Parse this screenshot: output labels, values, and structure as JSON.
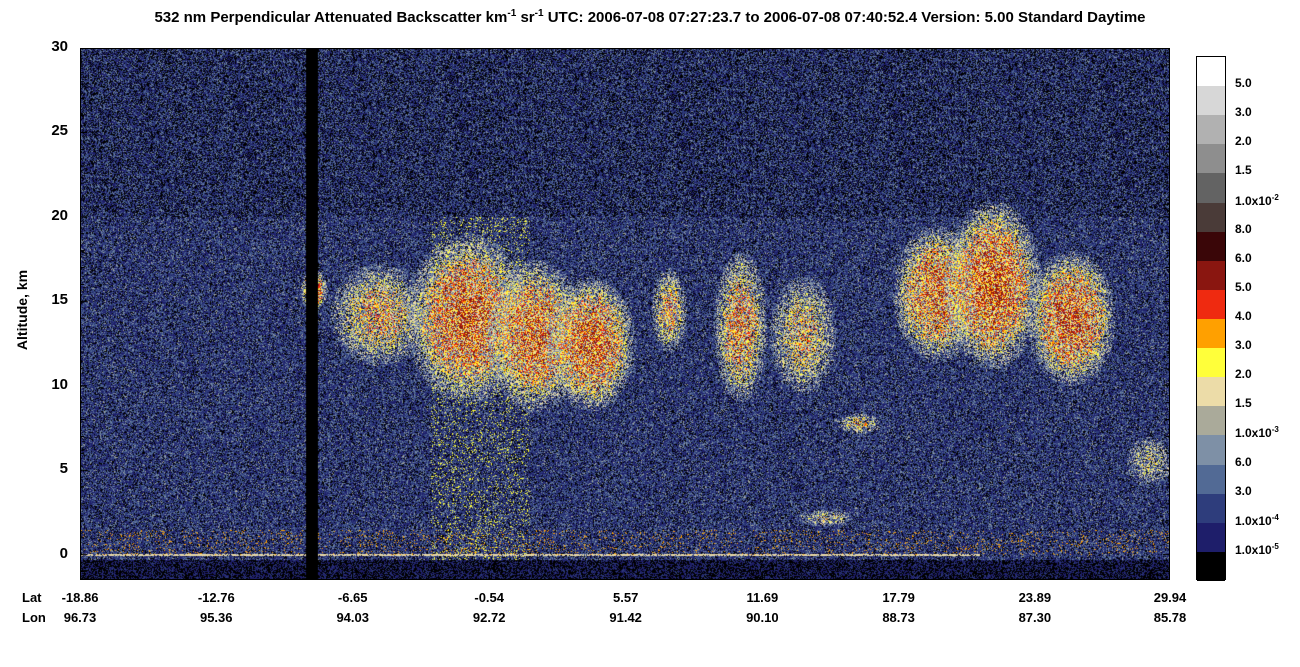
{
  "title": {
    "prefix": "532 nm Perpendicular Attenuated Backscatter km",
    "exp1": "-1",
    "mid": " sr",
    "exp2": "-1",
    "suffix": "  UTC: 2006-07-08 07:27:23.7 to 2006-07-08 07:40:52.4  Version: 5.00 Standard Daytime"
  },
  "chart_data": {
    "type": "heatmap",
    "ylabel": "Altitude, km",
    "ylim": [
      -1.5,
      30
    ],
    "yticks": [
      "0",
      "5",
      "10",
      "15",
      "20",
      "25",
      "30"
    ],
    "x_rows": [
      {
        "label": "Lat",
        "values": [
          "-18.86",
          "-12.76",
          "-6.65",
          "-0.54",
          "5.57",
          "11.69",
          "17.79",
          "23.89",
          "29.94"
        ]
      },
      {
        "label": "Lon",
        "values": [
          "96.73",
          "95.36",
          "94.03",
          "92.72",
          "91.42",
          "90.10",
          "88.73",
          "87.30",
          "85.78"
        ]
      }
    ],
    "colorbar": {
      "levels": [
        {
          "base": "5.0",
          "exp": "",
          "color": "#ffffff"
        },
        {
          "base": "3.0",
          "exp": "",
          "color": "#d7d7d7"
        },
        {
          "base": "2.0",
          "exp": "",
          "color": "#b1b1b1"
        },
        {
          "base": "1.5",
          "exp": "",
          "color": "#8e8e8e"
        },
        {
          "base": "1.0x10",
          "exp": "-2",
          "color": "#636363"
        },
        {
          "base": "8.0",
          "exp": "",
          "color": "#4a3b38"
        },
        {
          "base": "6.0",
          "exp": "",
          "color": "#3a0608"
        },
        {
          "base": "5.0",
          "exp": "",
          "color": "#8a1610"
        },
        {
          "base": "4.0",
          "exp": "",
          "color": "#ef2a10"
        },
        {
          "base": "3.0",
          "exp": "",
          "color": "#ffa000"
        },
        {
          "base": "2.0",
          "exp": "",
          "color": "#ffff3a"
        },
        {
          "base": "1.5",
          "exp": "",
          "color": "#ecdca8"
        },
        {
          "base": "1.0x10",
          "exp": "-3",
          "color": "#aaaa9a"
        },
        {
          "base": "6.0",
          "exp": "",
          "color": "#7e90a6"
        },
        {
          "base": "3.0",
          "exp": "",
          "color": "#526a95"
        },
        {
          "base": "1.0x10",
          "exp": "-4",
          "color": "#2e3d7c"
        },
        {
          "base": "1.0x10",
          "exp": "-5",
          "color": "#1e1e6a"
        },
        {
          "base": "",
          "exp": "",
          "color": "#000000"
        }
      ]
    },
    "gap_column_lat": -8.5,
    "high_cloud_features": [
      {
        "lat": -8.4,
        "alt": 15.7,
        "width": 0.6,
        "depth": 1.2,
        "intensity": 0.9
      },
      {
        "lat": -5.5,
        "alt": 14.2,
        "width": 2.2,
        "depth": 3.0,
        "intensity": 0.6
      },
      {
        "lat": -1.5,
        "alt": 14.0,
        "width": 2.8,
        "depth": 5.0,
        "intensity": 0.9
      },
      {
        "lat": 1.5,
        "alt": 13.0,
        "width": 2.2,
        "depth": 4.5,
        "intensity": 0.85
      },
      {
        "lat": 4.0,
        "alt": 12.5,
        "width": 2.0,
        "depth": 4.0,
        "intensity": 0.9
      },
      {
        "lat": 7.5,
        "alt": 14.5,
        "width": 0.8,
        "depth": 2.5,
        "intensity": 0.6
      },
      {
        "lat": 10.7,
        "alt": 13.5,
        "width": 1.2,
        "depth": 4.5,
        "intensity": 0.7
      },
      {
        "lat": 13.5,
        "alt": 13.0,
        "width": 1.5,
        "depth": 3.5,
        "intensity": 0.55
      },
      {
        "lat": 19.5,
        "alt": 15.5,
        "width": 2.0,
        "depth": 4.0,
        "intensity": 0.85
      },
      {
        "lat": 22.0,
        "alt": 16.0,
        "width": 2.2,
        "depth": 5.0,
        "intensity": 0.95
      },
      {
        "lat": 25.5,
        "alt": 14.0,
        "width": 2.0,
        "depth": 4.0,
        "intensity": 0.9
      }
    ],
    "low_cloud_features": [
      {
        "lat": 14.5,
        "alt": 2.2,
        "width": 1.2,
        "depth": 0.5,
        "intensity": 0.4
      },
      {
        "lat": 16.0,
        "alt": 7.8,
        "width": 1.0,
        "depth": 0.6,
        "intensity": 0.5
      },
      {
        "lat": 29.0,
        "alt": 5.5,
        "width": 1.0,
        "depth": 1.5,
        "intensity": 0.35
      }
    ]
  }
}
